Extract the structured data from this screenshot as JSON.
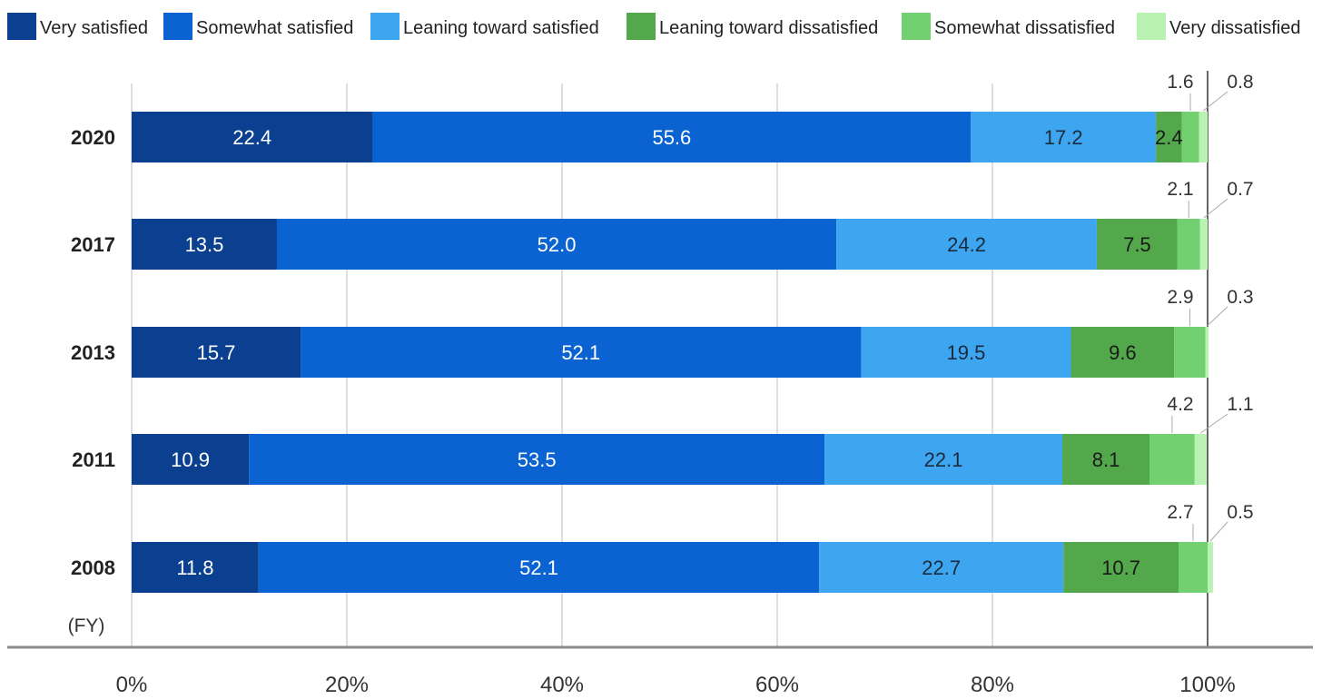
{
  "chart_data": {
    "type": "bar",
    "orientation": "horizontal",
    "stacked": true,
    "categories": [
      "2020",
      "2017",
      "2013",
      "2011",
      "2008"
    ],
    "category_unit_label": "(FY)",
    "series": [
      {
        "name": "Very satisfied",
        "color": "#0b3f8f",
        "values": [
          22.4,
          13.5,
          15.7,
          10.9,
          11.8
        ]
      },
      {
        "name": "Somewhat satisfied",
        "color": "#0a63d1",
        "values": [
          55.6,
          52.0,
          52.1,
          53.5,
          52.1
        ]
      },
      {
        "name": "Leaning toward satisfied",
        "color": "#3ea6f0",
        "values": [
          17.2,
          24.2,
          19.5,
          22.1,
          22.7
        ]
      },
      {
        "name": "Leaning toward dissatisfied",
        "color": "#52a84a",
        "values": [
          2.4,
          7.5,
          9.6,
          8.1,
          10.7
        ]
      },
      {
        "name": "Somewhat dissatisfied",
        "color": "#72d070",
        "values": [
          1.6,
          2.1,
          2.9,
          4.2,
          2.7
        ]
      },
      {
        "name": "Very dissatisfied",
        "color": "#baf2b4",
        "values": [
          0.8,
          0.7,
          0.3,
          1.1,
          0.5
        ]
      }
    ],
    "x_ticks": [
      "0%",
      "20%",
      "40%",
      "60%",
      "80%",
      "100%"
    ],
    "xlim": [
      0,
      100
    ],
    "grid": true,
    "legend_position": "top"
  }
}
